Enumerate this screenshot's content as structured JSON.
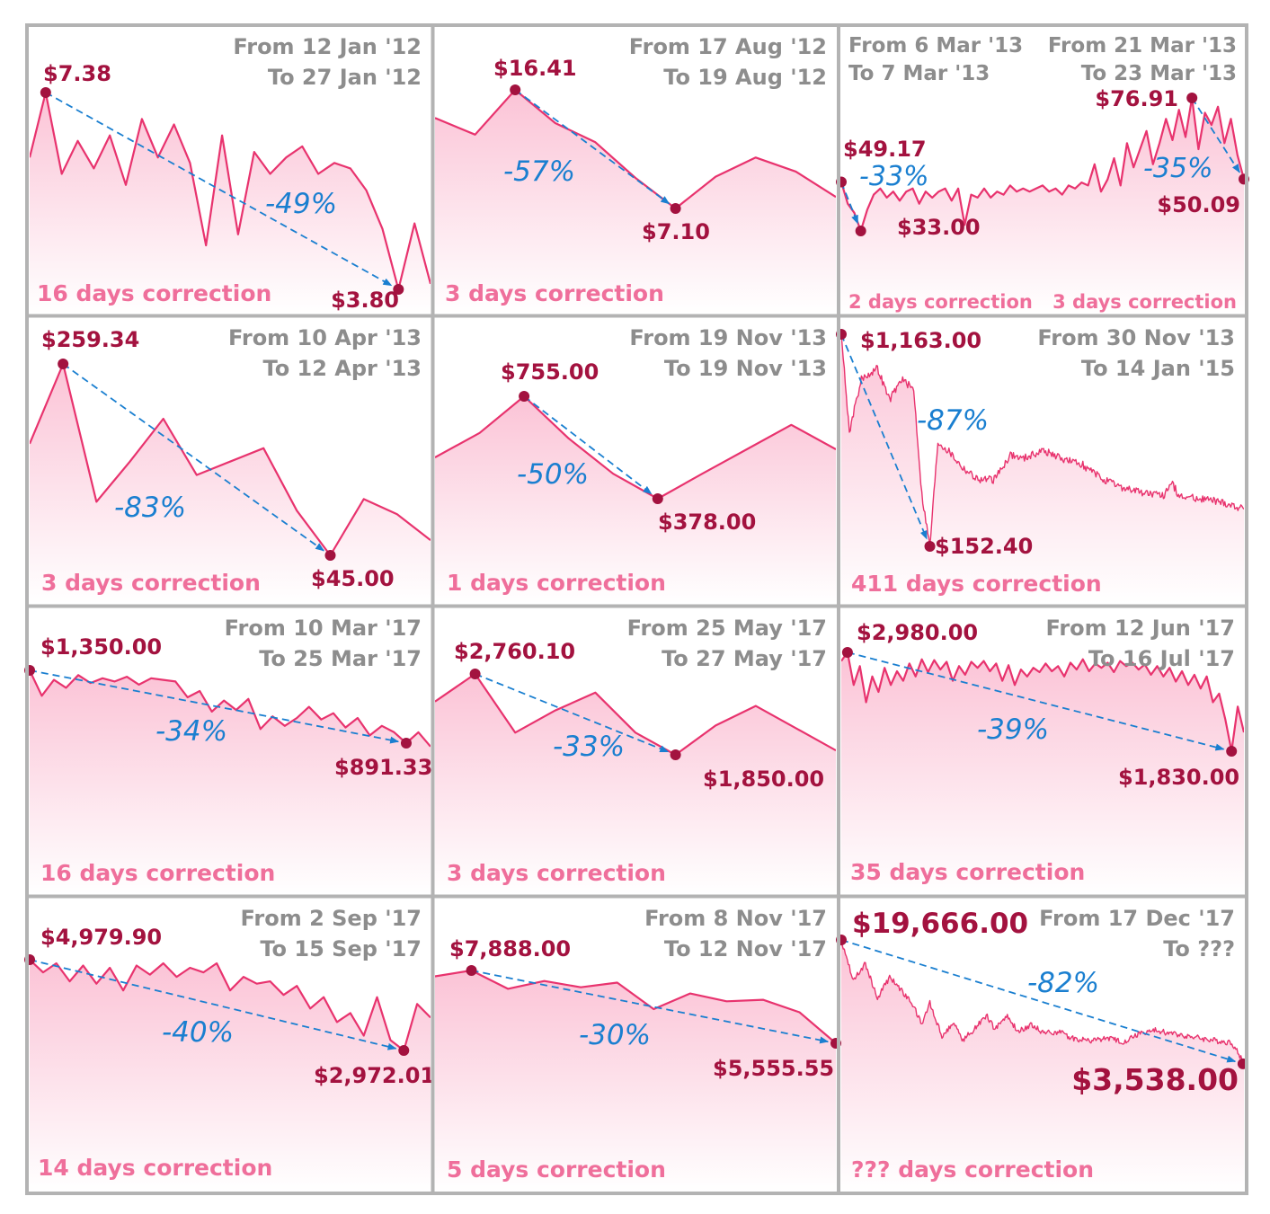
{
  "colors": {
    "line": "#e8336e",
    "point": "#a3123f",
    "price": "#a3123f",
    "percent": "#1a7fd0",
    "date": "#8d8d8d",
    "caption": "#ef6f9b",
    "border": "#b3b3b3",
    "fill_top": "#fbc3d6",
    "fill_bottom": "#ffffff"
  },
  "chart_data": [
    {
      "type": "line",
      "from": "From 12 Jan '12",
      "to": "To 27 Jan '12",
      "caption": "16 days correction",
      "high_label": "$7.38",
      "low_label": "$3.80",
      "pct": "-49%",
      "high": 7.38,
      "low": 3.8,
      "corrections": [
        {
          "from_label": "From 12 Jan '12",
          "to_label": "To 27 Jan '12",
          "caption": "16 days correction",
          "high_label": "$7.38",
          "low_label": "$3.80",
          "pct": "-49%"
        }
      ],
      "values": [
        6.2,
        7.38,
        5.9,
        6.5,
        6.0,
        6.6,
        5.7,
        6.9,
        6.2,
        6.8,
        6.1,
        4.6,
        6.6,
        4.8,
        6.3,
        5.9,
        6.2,
        6.4,
        5.9,
        6.1,
        6.0,
        5.6,
        4.9,
        3.8,
        5.0,
        3.9
      ]
    },
    {
      "type": "line",
      "from": "From 17 Aug '12",
      "to": "To 19 Aug '12",
      "caption": "3 days correction",
      "high_label": "$16.41",
      "low_label": "$7.10",
      "pct": "-57%",
      "high": 16.41,
      "low": 7.1,
      "corrections": [
        {
          "from_label": "From 17 Aug '12",
          "to_label": "To 19 Aug '12",
          "caption": "3 days correction",
          "high_label": "$16.41",
          "low_label": "$7.10",
          "pct": "-57%"
        }
      ],
      "values": [
        14.2,
        12.9,
        16.41,
        13.8,
        12.3,
        9.5,
        7.1,
        9.6,
        11.1,
        10.0,
        8.0
      ]
    },
    {
      "type": "line",
      "caption": "2 days correction",
      "caption2": "3 days correction",
      "corrections": [
        {
          "from_label": "From 6 Mar '13",
          "to_label": "To 7 Mar '13",
          "caption": "2 days correction",
          "high_label": "$49.17",
          "low_label": "$33.00",
          "pct": "-33%",
          "high": 49.17,
          "low": 33.0
        },
        {
          "from_label": "From 21 Mar '13",
          "to_label": "To 23 Mar '13",
          "caption": "3 days correction",
          "high_label": "$76.91",
          "low_label": "$50.09",
          "pct": "-35%",
          "high": 76.91,
          "low": 50.09
        }
      ],
      "values": [
        49.17,
        42,
        39,
        33.0,
        40,
        45,
        47,
        44,
        46,
        43,
        46,
        47,
        42,
        46,
        44,
        46,
        47,
        43,
        47,
        35,
        45,
        44,
        47,
        44,
        46,
        45,
        48,
        46,
        47,
        46,
        47,
        48,
        46,
        47,
        45,
        48,
        47,
        49,
        48,
        55,
        46,
        50,
        57,
        48,
        62,
        54,
        60,
        66,
        55,
        62,
        70,
        63,
        73,
        64,
        76.91,
        60,
        72,
        68,
        74,
        62,
        70,
        58,
        50.09
      ]
    },
    {
      "type": "line",
      "from": "From 10 Apr '13",
      "to": "To 12 Apr '13",
      "caption": "3 days correction",
      "high_label": "$259.34",
      "low_label": "$45.00",
      "pct": "-83%",
      "high": 259.34,
      "low": 45.0,
      "corrections": [
        {
          "from_label": "From 10 Apr '13",
          "to_label": "To 12 Apr '13",
          "caption": "3 days correction",
          "high_label": "$259.34",
          "low_label": "$45.00",
          "pct": "-83%"
        }
      ],
      "values": [
        170,
        259.34,
        105,
        150,
        198,
        135,
        150,
        165,
        95,
        45.0,
        108,
        91,
        62
      ]
    },
    {
      "type": "line",
      "from": "From 19 Nov '13",
      "to": "To 19 Nov '13",
      "caption": "1 days correction",
      "high_label": "$755.00",
      "low_label": "$378.00",
      "pct": "-50%",
      "high": 755.0,
      "low": 378.0,
      "corrections": [
        {
          "from_label": "From 19 Nov '13",
          "to_label": "To 19 Nov '13",
          "caption": "1 days correction",
          "high_label": "$755.00",
          "low_label": "$378.00",
          "pct": "-50%"
        }
      ],
      "values": [
        530,
        620,
        755.0,
        600,
        470,
        378.0,
        470,
        560,
        650,
        560
      ]
    },
    {
      "type": "line",
      "from": "From 30 Nov '13",
      "to": "To 14 Jan '15",
      "caption": "411 days correction",
      "high_label": "$1,163.00",
      "low_label": "$152.40",
      "pct": "-87%",
      "high": 1163.0,
      "low": 152.4,
      "corrections": [
        {
          "from_label": "From 30 Nov '13",
          "to_label": "To 14 Jan '15",
          "caption": "411 days correction",
          "high_label": "$1,163.00",
          "low_label": "$152.40",
          "pct": "-87%"
        }
      ],
      "anchors": [
        [
          0,
          1163
        ],
        [
          2,
          700
        ],
        [
          5,
          950
        ],
        [
          9,
          1000
        ],
        [
          12,
          850
        ],
        [
          15,
          950
        ],
        [
          18,
          900
        ],
        [
          20,
          400
        ],
        [
          22,
          152.4
        ],
        [
          24,
          650
        ],
        [
          27,
          600
        ],
        [
          30,
          530
        ],
        [
          34,
          470
        ],
        [
          38,
          470
        ],
        [
          42,
          590
        ],
        [
          45,
          570
        ],
        [
          50,
          610
        ],
        [
          55,
          570
        ],
        [
          60,
          540
        ],
        [
          65,
          470
        ],
        [
          70,
          430
        ],
        [
          75,
          410
        ],
        [
          80,
          390
        ],
        [
          82,
          460
        ],
        [
          84,
          390
        ],
        [
          90,
          380
        ],
        [
          95,
          360
        ],
        [
          100,
          330
        ]
      ],
      "n": 101,
      "noise": 18
    },
    {
      "type": "line",
      "from": "From 10 Mar '17",
      "to": "To 25 Mar '17",
      "caption": "16 days correction",
      "high_label": "$1,350.00",
      "low_label": "$891.33",
      "pct": "-34%",
      "high": 1350.0,
      "low": 891.33,
      "corrections": [
        {
          "from_label": "From 10 Mar '17",
          "to_label": "To 25 Mar '17",
          "caption": "16 days correction",
          "high_label": "$1,350.00",
          "low_label": "$891.33",
          "pct": "-34%"
        }
      ],
      "values": [
        1350.0,
        1190,
        1290,
        1240,
        1320,
        1270,
        1300,
        1280,
        1310,
        1260,
        1300,
        1290,
        1280,
        1180,
        1220,
        1090,
        1160,
        1100,
        1170,
        980,
        1060,
        1000,
        1050,
        1120,
        1040,
        1080,
        990,
        1050,
        940,
        1000,
        960,
        891.33,
        960,
        870
      ]
    },
    {
      "type": "line",
      "from": "From 25 May '17",
      "to": "To 27 May '17",
      "caption": "3 days correction",
      "high_label": "$2,760.10",
      "low_label": "$1,850.00",
      "pct": "-33%",
      "high": 2760.1,
      "low": 1850.0,
      "corrections": [
        {
          "from_label": "From 25 May '17",
          "to_label": "To 27 May '17",
          "caption": "3 days correction",
          "high_label": "$2,760.10",
          "low_label": "$1,850.00",
          "pct": "-33%"
        }
      ],
      "values": [
        2450,
        2760.1,
        2100,
        2350,
        2550,
        2100,
        1850.0,
        2180,
        2400,
        2150,
        1900
      ]
    },
    {
      "type": "line",
      "from": "From 12 Jun '17",
      "to": "To 16 Jul '17",
      "caption": "35 days correction",
      "high_label": "$2,980.00",
      "low_label": "$1,830.00",
      "pct": "-39%",
      "high": 2980.0,
      "low": 1830.0,
      "corrections": [
        {
          "from_label": "From 12 Jun '17",
          "to_label": "To 16 Jul '17",
          "caption": "35 days correction",
          "high_label": "$2,980.00",
          "low_label": "$1,830.00",
          "pct": "-39%"
        }
      ],
      "values": [
        2880,
        2980.0,
        2600,
        2820,
        2400,
        2700,
        2520,
        2800,
        2600,
        2760,
        2650,
        2850,
        2700,
        2900,
        2750,
        2890,
        2780,
        2870,
        2650,
        2820,
        2720,
        2870,
        2800,
        2880,
        2760,
        2850,
        2650,
        2830,
        2600,
        2780,
        2700,
        2800,
        2750,
        2850,
        2760,
        2820,
        2700,
        2860,
        2780,
        2900,
        2760,
        2850,
        2800,
        2860,
        2750,
        2880,
        2820,
        2860,
        2780,
        2840,
        2720,
        2820,
        2700,
        2800,
        2640,
        2760,
        2600,
        2720,
        2560,
        2700,
        2400,
        2500,
        2200,
        1830.0,
        2350,
        2050
      ]
    },
    {
      "type": "line",
      "from": "From 2 Sep '17",
      "to": "To 15 Sep '17",
      "caption": "14 days correction",
      "high_label": "$4,979.90",
      "low_label": "$2,972.01",
      "pct": "-40%",
      "high": 4979.9,
      "low": 2972.01,
      "corrections": [
        {
          "from_label": "From 2 Sep '17",
          "to_label": "To 15 Sep '17",
          "caption": "14 days correction",
          "high_label": "$4,979.90",
          "low_label": "$2,972.01",
          "pct": "-40%"
        }
      ],
      "values": [
        4979.9,
        4700,
        4900,
        4500,
        4850,
        4450,
        4800,
        4300,
        4850,
        4650,
        4900,
        4600,
        4800,
        4700,
        4900,
        4300,
        4600,
        4450,
        4500,
        4200,
        4400,
        3900,
        4150,
        3600,
        3800,
        3300,
        4150,
        3200,
        2972.01,
        4000,
        3700
      ]
    },
    {
      "type": "line",
      "from": "From 8 Nov '17",
      "to": "To 12 Nov '17",
      "caption": "5 days correction",
      "high_label": "$7,888.00",
      "low_label": "$5,555.55",
      "pct": "-30%",
      "high": 7888.0,
      "low": 5555.55,
      "corrections": [
        {
          "from_label": "From 8 Nov '17",
          "to_label": "To 12 Nov '17",
          "caption": "5 days correction",
          "high_label": "$7,888.00",
          "low_label": "$5,555.55",
          "pct": "-30%"
        }
      ],
      "values": [
        7700,
        7888.0,
        7300,
        7550,
        7350,
        7500,
        6650,
        7150,
        6900,
        6950,
        6550,
        5555.55
      ]
    },
    {
      "type": "line",
      "from": "From 17 Dec '17",
      "to": "To ???",
      "caption": "??? days correction",
      "high_label": "$19,666.00",
      "low_label": "$3,538.00",
      "pct": "-82%",
      "high": 19666.0,
      "low": 3538.0,
      "corrections": [
        {
          "from_label": "From 17 Dec '17",
          "to_label": "To ???",
          "caption": "??? days correction",
          "high_label": "$19,666.00",
          "low_label": "$3,538.00",
          "pct": "-82%"
        }
      ],
      "anchors": [
        [
          0,
          19666
        ],
        [
          3,
          14500
        ],
        [
          6,
          16500
        ],
        [
          9,
          12000
        ],
        [
          12,
          14800
        ],
        [
          15,
          13000
        ],
        [
          18,
          11000
        ],
        [
          20,
          8500
        ],
        [
          22,
          11500
        ],
        [
          25,
          7000
        ],
        [
          28,
          9000
        ],
        [
          30,
          6500
        ],
        [
          33,
          8000
        ],
        [
          36,
          9800
        ],
        [
          38,
          8000
        ],
        [
          41,
          9700
        ],
        [
          44,
          7600
        ],
        [
          47,
          8600
        ],
        [
          50,
          7600
        ],
        [
          54,
          7600
        ],
        [
          58,
          6700
        ],
        [
          62,
          6500
        ],
        [
          66,
          6800
        ],
        [
          70,
          6300
        ],
        [
          74,
          7400
        ],
        [
          78,
          7800
        ],
        [
          82,
          7400
        ],
        [
          86,
          7100
        ],
        [
          90,
          6700
        ],
        [
          94,
          6400
        ],
        [
          97,
          6200
        ],
        [
          100,
          3538
        ]
      ],
      "n": 101,
      "noise": 380
    }
  ]
}
